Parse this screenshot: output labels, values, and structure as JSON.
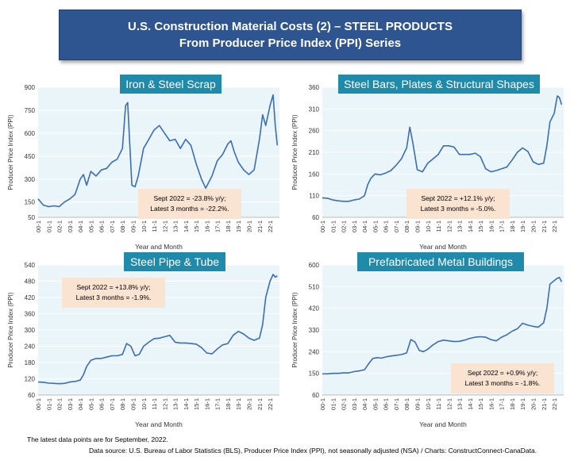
{
  "header": {
    "title_line1": "U.S. Construction Material Costs (2) – STEEL PRODUCTS",
    "title_line2": "From Producer Price Index (PPI) Series"
  },
  "footer": {
    "note": "The latest data points are for September, 2022.",
    "source": "Data source: U.S. Bureau of Labor Statistics (BLS), Producer Price Index (PPI), not seasonally adjusted (NSA) / Charts: ConstructConnect-CanaData."
  },
  "colors": {
    "line": "#3b6db5",
    "plot_bg": "#eaf5fa",
    "title_bg": "#1f8aaa",
    "annot_bg": "#fbe3d2",
    "banner": "#2e5590"
  },
  "chart_data": [
    {
      "type": "line",
      "title": "Iron & Steel Scrap",
      "ylabel": "Producer Price Index (PPI)",
      "xlabel": "Year and Month",
      "ylim": [
        50,
        900
      ],
      "yticks": [
        50,
        150,
        300,
        450,
        600,
        750,
        900
      ],
      "xticks": [
        "00-1",
        "01-1",
        "02-1",
        "03-1",
        "04-1",
        "05-1",
        "06-1",
        "07-1",
        "08-1",
        "09-1",
        "10-1",
        "11-1",
        "12-1",
        "13-1",
        "14-1",
        "15-1",
        "16-1",
        "17-1",
        "18-1",
        "19-1",
        "20-1",
        "21-1",
        "22-1"
      ],
      "annotation": [
        "Sept 2022 = -23.8% y/y;",
        "Latest 3 months = -22.2%."
      ],
      "x": [
        2000.0,
        2000.5,
        2001.0,
        2001.5,
        2002.0,
        2002.5,
        2003.0,
        2003.5,
        2004.0,
        2004.3,
        2004.6,
        2005.0,
        2005.5,
        2006.0,
        2006.5,
        2007.0,
        2007.5,
        2008.0,
        2008.3,
        2008.5,
        2008.9,
        2009.2,
        2009.5,
        2010.0,
        2010.5,
        2011.0,
        2011.5,
        2012.0,
        2012.5,
        2013.0,
        2013.5,
        2014.0,
        2014.5,
        2015.0,
        2015.5,
        2015.9,
        2016.5,
        2017.0,
        2017.5,
        2018.0,
        2018.3,
        2018.6,
        2019.0,
        2019.5,
        2020.0,
        2020.5,
        2021.0,
        2021.3,
        2021.6,
        2022.0,
        2022.3,
        2022.5,
        2022.7
      ],
      "y": [
        170,
        130,
        120,
        125,
        120,
        150,
        170,
        200,
        300,
        330,
        260,
        350,
        320,
        360,
        370,
        410,
        430,
        500,
        780,
        800,
        260,
        250,
        320,
        500,
        560,
        620,
        650,
        600,
        550,
        560,
        500,
        560,
        520,
        400,
        300,
        240,
        320,
        420,
        460,
        530,
        550,
        480,
        410,
        360,
        330,
        360,
        560,
        720,
        650,
        780,
        850,
        650,
        520
      ]
    },
    {
      "type": "line",
      "title": "Steel Bars, Plates & Structural Shapes",
      "ylabel": "Producer Price Index (PPI)",
      "xlabel": "Year and Month",
      "ylim": [
        60,
        360
      ],
      "yticks": [
        60,
        110,
        160,
        210,
        260,
        310,
        360
      ],
      "xticks": [
        "00-1",
        "01-1",
        "02-1",
        "03-1",
        "04-1",
        "05-1",
        "06-1",
        "07-1",
        "08-1",
        "09-1",
        "10-1",
        "11-1",
        "12-1",
        "13-1",
        "14-1",
        "15-1",
        "16-1",
        "17-1",
        "18-1",
        "19-1",
        "20-1",
        "21-1",
        "22-1"
      ],
      "annotation": [
        "Sept 2022 = +12.1% y/y;",
        "Latest 3 months = -5.0%."
      ],
      "x": [
        2000.0,
        2000.5,
        2001.0,
        2001.5,
        2002.0,
        2002.5,
        2003.0,
        2003.5,
        2004.0,
        2004.3,
        2004.6,
        2005.0,
        2005.5,
        2006.0,
        2006.5,
        2007.0,
        2007.5,
        2008.0,
        2008.3,
        2008.6,
        2009.0,
        2009.5,
        2010.0,
        2010.5,
        2011.0,
        2011.5,
        2012.0,
        2012.5,
        2013.0,
        2013.5,
        2014.0,
        2014.5,
        2015.0,
        2015.5,
        2016.0,
        2016.5,
        2017.0,
        2017.5,
        2018.0,
        2018.5,
        2019.0,
        2019.5,
        2020.0,
        2020.5,
        2021.0,
        2021.3,
        2021.6,
        2022.0,
        2022.3,
        2022.5,
        2022.7
      ],
      "y": [
        105,
        104,
        100,
        98,
        97,
        97,
        100,
        102,
        110,
        135,
        150,
        160,
        158,
        162,
        168,
        180,
        195,
        220,
        268,
        230,
        170,
        165,
        185,
        195,
        205,
        225,
        225,
        222,
        205,
        205,
        205,
        208,
        200,
        172,
        165,
        168,
        172,
        176,
        192,
        210,
        220,
        212,
        188,
        182,
        185,
        225,
        280,
        300,
        340,
        336,
        320
      ]
    },
    {
      "type": "line",
      "title": "Steel Pipe & Tube",
      "ylabel": "Producer Price Index (PPI)",
      "xlabel": "Year and Month",
      "ylim": [
        60,
        540
      ],
      "yticks": [
        60,
        120,
        180,
        240,
        300,
        360,
        420,
        480,
        540
      ],
      "xticks": [
        "00-1",
        "01-1",
        "02-1",
        "03-1",
        "04-1",
        "05-1",
        "06-1",
        "07-1",
        "08-1",
        "09-1",
        "10-1",
        "11-1",
        "12-1",
        "13-1",
        "14-1",
        "15-1",
        "16-1",
        "17-1",
        "18-1",
        "19-1",
        "20-1",
        "21-1",
        "22-1"
      ],
      "annotation": [
        "Sept 2022 = +13.8% y/y;",
        "Latest 3 months = -1.9%."
      ],
      "x": [
        2000.0,
        2000.5,
        2001.0,
        2001.5,
        2002.0,
        2002.5,
        2003.0,
        2003.5,
        2004.0,
        2004.3,
        2004.6,
        2005.0,
        2005.5,
        2006.0,
        2006.5,
        2007.0,
        2007.5,
        2008.0,
        2008.4,
        2008.8,
        2009.2,
        2009.6,
        2010.0,
        2010.5,
        2011.0,
        2011.5,
        2012.0,
        2012.5,
        2013.0,
        2013.5,
        2014.0,
        2014.5,
        2015.0,
        2015.5,
        2016.0,
        2016.5,
        2017.0,
        2017.5,
        2018.0,
        2018.5,
        2019.0,
        2019.5,
        2020.0,
        2020.5,
        2021.0,
        2021.3,
        2021.6,
        2022.0,
        2022.3,
        2022.5,
        2022.7
      ],
      "y": [
        108,
        107,
        104,
        103,
        102,
        103,
        108,
        110,
        115,
        135,
        165,
        188,
        195,
        195,
        200,
        205,
        205,
        210,
        250,
        240,
        205,
        210,
        240,
        255,
        268,
        270,
        275,
        280,
        255,
        252,
        252,
        250,
        248,
        235,
        215,
        212,
        230,
        245,
        250,
        280,
        295,
        285,
        270,
        262,
        270,
        320,
        420,
        480,
        505,
        495,
        500
      ]
    },
    {
      "type": "line",
      "title": "Prefabricated Metal Buildings",
      "ylabel": "Producer Price Index (PPI)",
      "xlabel": "Year and Month",
      "ylim": [
        60,
        600
      ],
      "yticks": [
        60,
        150,
        240,
        330,
        420,
        510,
        600
      ],
      "xticks": [
        "00-1",
        "01-1",
        "02-1",
        "03-1",
        "04-1",
        "05-1",
        "06-1",
        "07-1",
        "08-1",
        "09-1",
        "10-1",
        "11-1",
        "12-1",
        "13-1",
        "14-1",
        "15-1",
        "16-1",
        "17-1",
        "18-1",
        "19-1",
        "20-1",
        "21-1",
        "22-1"
      ],
      "annotation": [
        "Sept 2022 = +0.9% y/y;",
        "Latest 3 months = -1.8%."
      ],
      "x": [
        2000.0,
        2000.5,
        2001.0,
        2001.5,
        2002.0,
        2002.5,
        2003.0,
        2003.5,
        2004.0,
        2004.4,
        2004.8,
        2005.2,
        2005.6,
        2006.0,
        2006.5,
        2007.0,
        2007.5,
        2008.0,
        2008.4,
        2008.8,
        2009.2,
        2009.6,
        2010.0,
        2010.5,
        2011.0,
        2011.5,
        2012.0,
        2012.5,
        2013.0,
        2013.5,
        2014.0,
        2014.5,
        2015.0,
        2015.5,
        2016.0,
        2016.5,
        2017.0,
        2017.5,
        2018.0,
        2018.5,
        2019.0,
        2019.5,
        2020.0,
        2020.5,
        2021.0,
        2021.3,
        2021.6,
        2022.0,
        2022.3,
        2022.5,
        2022.7
      ],
      "y": [
        148,
        148,
        150,
        150,
        152,
        152,
        157,
        160,
        165,
        190,
        212,
        215,
        213,
        218,
        222,
        225,
        228,
        235,
        290,
        280,
        245,
        240,
        250,
        268,
        282,
        288,
        285,
        282,
        283,
        288,
        295,
        300,
        302,
        300,
        290,
        285,
        300,
        310,
        325,
        335,
        358,
        350,
        345,
        342,
        360,
        420,
        520,
        535,
        545,
        548,
        530
      ]
    }
  ]
}
